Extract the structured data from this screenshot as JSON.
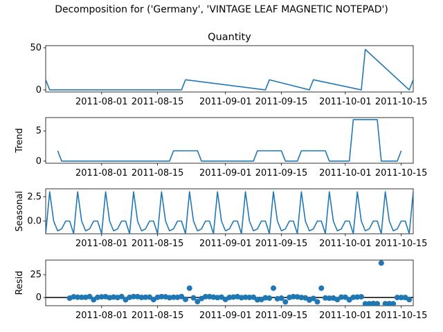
{
  "figure": {
    "suptitle": "Decomposition for ('Germany', 'VINTAGE LEAF MAGNETIC NOTEPAD')",
    "line_color": "#1f77b4",
    "zero_line_color": "#000000"
  },
  "chart_data": [
    {
      "type": "line",
      "title": "Quantity",
      "ylabel": "",
      "xlim": [
        "2011-07-18",
        "2011-10-18"
      ],
      "ylim": [
        -2.5,
        52.5
      ],
      "yticks": [
        0,
        50
      ],
      "ytick_labels": [
        "0",
        "50"
      ],
      "xticks": [
        "2011-08-01",
        "2011-08-15",
        "2011-09-01",
        "2011-09-15",
        "2011-10-01",
        "2011-10-15"
      ],
      "xtick_labels": [
        "2011-08-01",
        "2011-08-15",
        "2011-09-01",
        "2011-09-15",
        "2011-10-01",
        "2011-10-15"
      ],
      "x": [
        "2011-07-18",
        "2011-07-19",
        "2011-08-21",
        "2011-08-22",
        "2011-09-11",
        "2011-09-12",
        "2011-09-22",
        "2011-09-23",
        "2011-10-05",
        "2011-10-06",
        "2011-10-17",
        "2011-10-18"
      ],
      "values": [
        12,
        0,
        0,
        12,
        0,
        12,
        0,
        12,
        0,
        48,
        0,
        12
      ]
    },
    {
      "type": "line",
      "title": "",
      "ylabel": "Trend",
      "xlim": [
        "2011-07-18",
        "2011-10-18"
      ],
      "ylim": [
        -0.35,
        7.2
      ],
      "yticks": [
        0,
        5
      ],
      "ytick_labels": [
        "0",
        "5"
      ],
      "xticks": [
        "2011-08-01",
        "2011-08-15",
        "2011-09-01",
        "2011-09-15",
        "2011-10-01",
        "2011-10-15"
      ],
      "xtick_labels": [
        "2011-08-01",
        "2011-08-15",
        "2011-09-01",
        "2011-09-15",
        "2011-10-01",
        "2011-10-15"
      ],
      "x": [
        "2011-07-21",
        "2011-07-22",
        "2011-08-18",
        "2011-08-19",
        "2011-08-25",
        "2011-08-26",
        "2011-09-08",
        "2011-09-09",
        "2011-09-15",
        "2011-09-16",
        "2011-09-19",
        "2011-09-20",
        "2011-09-26",
        "2011-09-27",
        "2011-10-02",
        "2011-10-03",
        "2011-10-09",
        "2011-10-10",
        "2011-10-14",
        "2011-10-15"
      ],
      "values": [
        1.71,
        0,
        0,
        1.71,
        1.71,
        0,
        0,
        1.71,
        1.71,
        0,
        0,
        1.71,
        1.71,
        0,
        0,
        6.86,
        6.86,
        0,
        0,
        1.71
      ]
    },
    {
      "type": "line",
      "title": "",
      "ylabel": "Seasonal",
      "xlim": [
        "2011-07-18",
        "2011-10-18"
      ],
      "ylim": [
        -1.3,
        3.3
      ],
      "yticks": [
        0.0,
        2.5
      ],
      "ytick_labels": [
        "0.0",
        "2.5"
      ],
      "xticks": [
        "2011-08-01",
        "2011-08-15",
        "2011-09-01",
        "2011-09-15",
        "2011-10-01",
        "2011-10-15"
      ],
      "xtick_labels": [
        "2011-08-01",
        "2011-08-15",
        "2011-09-01",
        "2011-09-15",
        "2011-10-01",
        "2011-10-15"
      ],
      "period": 7,
      "start": "2011-07-18",
      "cycle": [
        -1.3,
        3.0,
        0.0,
        -1.0,
        -0.8,
        0.0,
        0.0
      ],
      "end": "2011-10-18"
    },
    {
      "type": "scatter",
      "title": "",
      "ylabel": "Resid",
      "xlim": [
        "2011-07-18",
        "2011-10-18"
      ],
      "ylim": [
        -9,
        41
      ],
      "yticks": [
        0,
        25
      ],
      "ytick_labels": [
        "0",
        "25"
      ],
      "xticks": [
        "2011-08-01",
        "2011-08-15",
        "2011-09-01",
        "2011-09-15",
        "2011-10-01",
        "2011-10-15"
      ],
      "xtick_labels": [
        "2011-08-01",
        "2011-08-15",
        "2011-09-01",
        "2011-09-15",
        "2011-10-01",
        "2011-10-15"
      ],
      "hline": 0,
      "x": [
        "2011-07-24",
        "2011-07-25",
        "2011-07-26",
        "2011-07-27",
        "2011-07-28",
        "2011-07-29",
        "2011-07-30",
        "2011-07-31",
        "2011-08-01",
        "2011-08-02",
        "2011-08-03",
        "2011-08-04",
        "2011-08-05",
        "2011-08-06",
        "2011-08-07",
        "2011-08-08",
        "2011-08-09",
        "2011-08-10",
        "2011-08-11",
        "2011-08-12",
        "2011-08-13",
        "2011-08-14",
        "2011-08-15",
        "2011-08-16",
        "2011-08-17",
        "2011-08-18",
        "2011-08-19",
        "2011-08-20",
        "2011-08-21",
        "2011-08-22",
        "2011-08-23",
        "2011-08-24",
        "2011-08-25",
        "2011-08-26",
        "2011-08-27",
        "2011-08-28",
        "2011-08-29",
        "2011-08-30",
        "2011-08-31",
        "2011-09-01",
        "2011-09-02",
        "2011-09-03",
        "2011-09-04",
        "2011-09-05",
        "2011-09-06",
        "2011-09-07",
        "2011-09-08",
        "2011-09-09",
        "2011-09-10",
        "2011-09-11",
        "2011-09-12",
        "2011-09-13",
        "2011-09-14",
        "2011-09-15",
        "2011-09-16",
        "2011-09-17",
        "2011-09-18",
        "2011-09-19",
        "2011-09-20",
        "2011-09-21",
        "2011-09-22",
        "2011-09-23",
        "2011-09-24",
        "2011-09-25",
        "2011-09-26",
        "2011-09-27",
        "2011-09-28",
        "2011-09-29",
        "2011-09-30",
        "2011-10-01",
        "2011-10-02",
        "2011-10-03",
        "2011-10-04",
        "2011-10-05",
        "2011-10-06",
        "2011-10-07",
        "2011-10-08",
        "2011-10-09",
        "2011-10-10",
        "2011-10-11",
        "2011-10-12",
        "2011-10-13",
        "2011-10-14",
        "2011-10-15",
        "2011-10-16",
        "2011-10-17"
      ],
      "values": [
        -0.7,
        0.8,
        0.3,
        0.2,
        0.2,
        1.0,
        -2.5,
        0.2,
        0.7,
        0.9,
        -0.2,
        0.5,
        0.0,
        1.0,
        -2.5,
        0.2,
        1.0,
        0.9,
        0.1,
        0.3,
        0.4,
        -2.3,
        0.2,
        0.9,
        0.8,
        -0.2,
        0.3,
        0.2,
        1.0,
        -2.0,
        10.2,
        -0.4,
        -4.5,
        -1.1,
        0.9,
        0.9,
        0.4,
        -0.1,
        0.4,
        -2.1,
        0.1,
        0.5,
        0.9,
        -0.2,
        0.3,
        0.1,
        0.3,
        -2.6,
        -2.2,
        -0.3,
        -0.7,
        10.2,
        -1.4,
        -0.7,
        -4.8,
        0.1,
        0.9,
        0.7,
        0.0,
        -0.4,
        -2.8,
        -1.0,
        -4.7,
        10.2,
        -0.5,
        -0.8,
        -0.6,
        -2.3,
        0.4,
        0.3,
        -2.6,
        0.2,
        0.5,
        0.8,
        -6.9,
        -6.8,
        -6.5,
        -6.8,
        37.7,
        -6.8,
        -6.7,
        -6.8,
        0.0,
        0.0,
        0.0,
        -2.3
      ]
    }
  ]
}
